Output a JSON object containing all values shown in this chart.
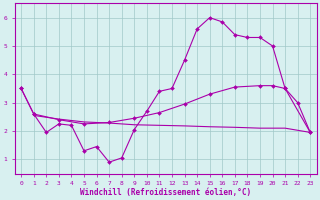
{
  "line1_x": [
    0,
    1,
    2,
    3,
    4,
    5,
    6,
    7,
    8,
    9,
    10,
    11,
    12,
    13,
    14,
    15,
    16,
    17,
    18,
    19,
    20,
    21,
    22,
    23
  ],
  "line1_y": [
    3.5,
    2.6,
    1.95,
    2.25,
    2.2,
    1.3,
    1.45,
    0.9,
    1.05,
    2.05,
    2.7,
    3.4,
    3.5,
    4.5,
    5.6,
    6.0,
    5.85,
    5.4,
    5.3,
    5.3,
    5.0,
    3.5,
    3.0,
    1.95
  ],
  "line2_x": [
    0,
    1,
    3,
    5,
    7,
    9,
    11,
    13,
    15,
    17,
    19,
    20,
    21,
    23
  ],
  "line2_y": [
    3.5,
    2.6,
    2.4,
    2.25,
    2.3,
    2.45,
    2.65,
    2.95,
    3.3,
    3.55,
    3.6,
    3.6,
    3.5,
    1.95
  ],
  "line3_x": [
    1,
    3,
    5,
    7,
    9,
    11,
    13,
    15,
    17,
    19,
    21,
    23
  ],
  "line3_y": [
    2.55,
    2.42,
    2.32,
    2.28,
    2.22,
    2.2,
    2.18,
    2.15,
    2.13,
    2.1,
    2.1,
    1.95
  ],
  "color": "#aa00aa",
  "bg_color": "#d8f0f0",
  "xlabel": "Windchill (Refroidissement éolien,°C)",
  "xlim": [
    -0.5,
    23.5
  ],
  "ylim": [
    0.5,
    6.5
  ],
  "yticks": [
    1,
    2,
    3,
    4,
    5,
    6
  ],
  "xticks": [
    0,
    1,
    2,
    3,
    4,
    5,
    6,
    7,
    8,
    9,
    10,
    11,
    12,
    13,
    14,
    15,
    16,
    17,
    18,
    19,
    20,
    21,
    22,
    23
  ],
  "grid_color": "#a0c8c8",
  "markersize": 2.0,
  "linewidth": 0.8
}
